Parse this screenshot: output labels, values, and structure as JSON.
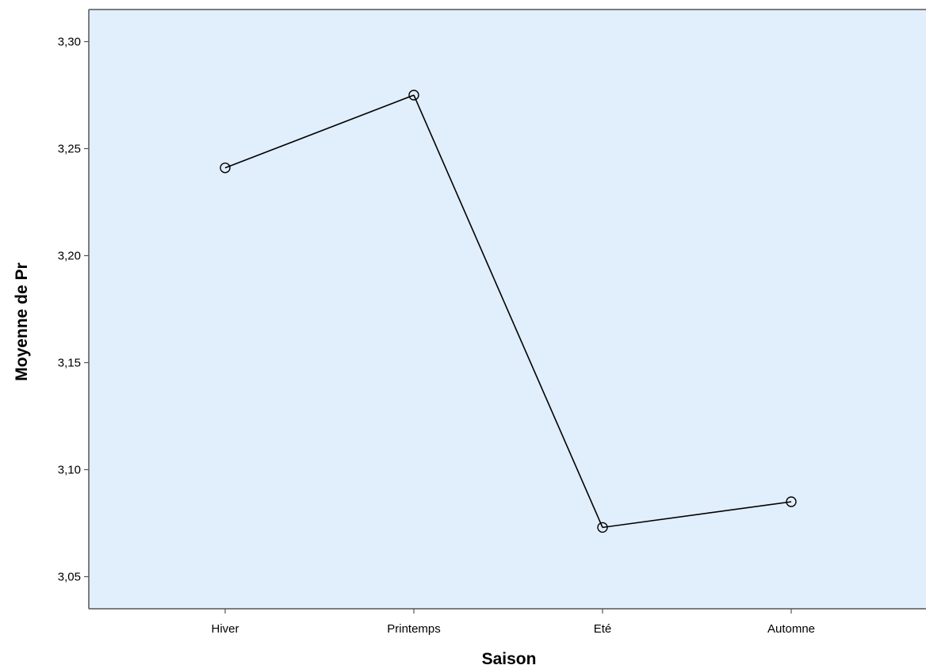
{
  "chart_data": {
    "type": "line",
    "title": "",
    "xlabel": "Saison",
    "ylabel": "Moyenne de Pr",
    "categories": [
      "Hiver",
      "Printemps",
      "Eté",
      "Automne"
    ],
    "series": [
      {
        "values": [
          3.241,
          3.275,
          3.073,
          3.085
        ]
      }
    ],
    "ylim": [
      3.035,
      3.315
    ],
    "yticks": [
      3.05,
      3.1,
      3.15,
      3.2,
      3.25,
      3.3
    ],
    "ytick_labels": [
      "3,05",
      "3,10",
      "3,15",
      "3,20",
      "3,25",
      "3,30"
    ],
    "grid": false,
    "legend": "none",
    "marker": "open-circle",
    "colors": {
      "plot_background": "#e1eefb",
      "line": "#000000",
      "axis": "#555555"
    }
  }
}
